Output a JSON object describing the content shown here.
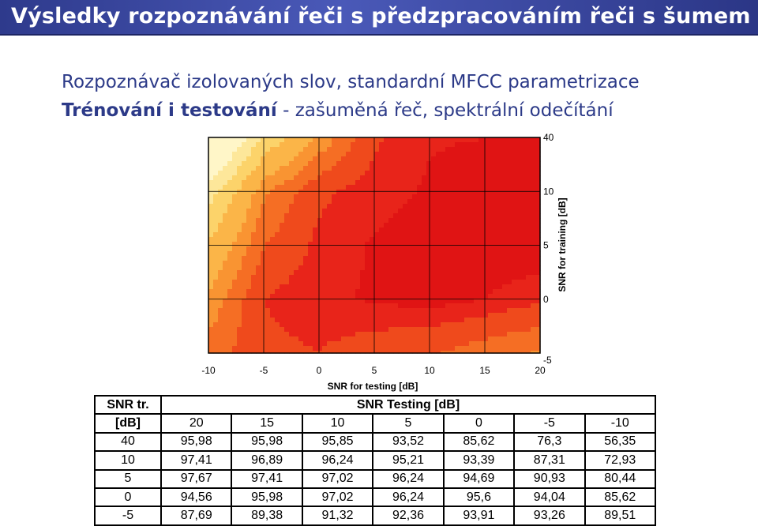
{
  "slide": {
    "title": "Výsledky rozpoznávání řeči s předzpracováním řeči s šumem",
    "line1": "Rozpoznávač izolovaných slov, standardní MFCC parametrizace",
    "line2_bold": "Trénování i testování",
    "line2_rest": " - zašuměná řeč, spektrální odečítání"
  },
  "chart_data": {
    "type": "heatmap",
    "xlabel": "SNR for testing [dB]",
    "ylabel": "SNR for training [dB]",
    "x_ticks": [
      "-10",
      "-5",
      "0",
      "5",
      "10",
      "15",
      "20"
    ],
    "y_ticks": [
      "40",
      "10",
      "5",
      "0",
      "-5"
    ],
    "x": [
      -10,
      -5,
      0,
      5,
      10,
      15,
      20
    ],
    "y": [
      40,
      10,
      5,
      0,
      -5
    ],
    "colors": {
      "levels": [
        "#fff6c8",
        "#fde79a",
        "#fcd36a",
        "#fbb548",
        "#f99432",
        "#f56e24",
        "#ef4a1c",
        "#e8241a",
        "#e01414"
      ],
      "line": "#000000",
      "frame_bg": "#ffffff"
    }
  },
  "table": {
    "corner_top": "SNR tr.",
    "corner_bottom": "[dB]",
    "testing_header": "SNR Testing [dB]",
    "columns": [
      "20",
      "15",
      "10",
      "5",
      "0",
      "-5",
      "-10"
    ],
    "rows": [
      {
        "label": "40",
        "values": [
          "95,98",
          "95,98",
          "95,85",
          "93,52",
          "85,62",
          "76,3",
          "56,35"
        ]
      },
      {
        "label": "10",
        "values": [
          "97,41",
          "96,89",
          "96,24",
          "95,21",
          "93,39",
          "87,31",
          "72,93"
        ]
      },
      {
        "label": "5",
        "values": [
          "97,67",
          "97,41",
          "97,02",
          "96,24",
          "94,69",
          "90,93",
          "80,44"
        ]
      },
      {
        "label": "0",
        "values": [
          "94,56",
          "95,98",
          "97,02",
          "96,24",
          "95,6",
          "94,04",
          "85,62"
        ]
      },
      {
        "label": "-5",
        "values": [
          "87,69",
          "89,38",
          "91,32",
          "92,36",
          "93,91",
          "93,26",
          "89,51"
        ]
      }
    ]
  }
}
